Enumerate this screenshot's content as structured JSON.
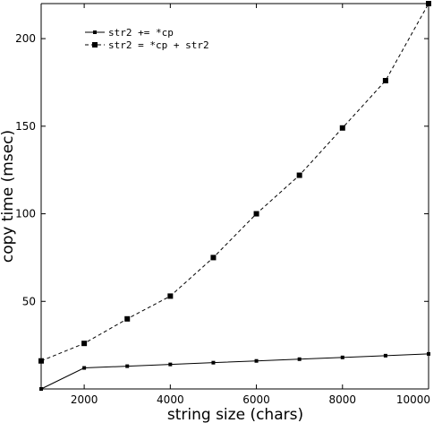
{
  "chart_data": {
    "type": "line",
    "xlabel": "string size (chars)",
    "ylabel": "copy time (msec)",
    "xlim": [
      1000,
      10000
    ],
    "ylim": [
      0,
      220
    ],
    "xticks": [
      2000,
      4000,
      6000,
      8000,
      10000
    ],
    "yticks": [
      50,
      100,
      150,
      200
    ],
    "grid": false,
    "legend_position": "top-left",
    "x": [
      1000,
      2000,
      3000,
      4000,
      5000,
      6000,
      7000,
      8000,
      9000,
      10000
    ],
    "series": [
      {
        "name": "str2 += *cp",
        "line_style": "solid",
        "values": [
          0,
          12,
          13,
          14,
          15,
          16,
          17,
          18,
          19,
          20
        ]
      },
      {
        "name": "str2 = *cp + str2",
        "line_style": "dashed",
        "values": [
          16,
          26,
          40,
          53,
          75,
          100,
          122,
          149,
          176,
          220
        ]
      }
    ]
  }
}
